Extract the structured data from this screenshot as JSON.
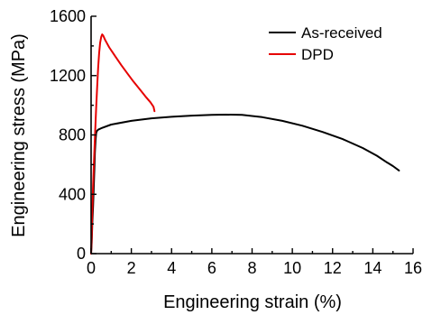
{
  "chart_data": {
    "type": "line",
    "title": "",
    "xlabel": "Engineering strain (%)",
    "ylabel": "Engineering stress (MPa)",
    "xlim": [
      0,
      16
    ],
    "ylim": [
      0,
      1600
    ],
    "xticks": [
      0,
      2,
      4,
      6,
      8,
      10,
      12,
      14,
      16
    ],
    "yticks": [
      0,
      400,
      800,
      1200,
      1600
    ],
    "grid": false,
    "legend_position": "top-right",
    "series": [
      {
        "name": "As-received",
        "color": "#000000",
        "x": [
          0.0,
          0.03,
          0.06,
          0.1,
          0.13,
          0.16,
          0.19,
          0.22,
          0.25,
          0.28,
          0.35,
          0.5,
          1.0,
          2.0,
          3.0,
          4.0,
          5.0,
          6.0,
          6.7,
          7.5,
          8.5,
          9.5,
          10.5,
          11.5,
          12.5,
          13.5,
          14.2,
          14.7,
          15.0,
          15.3
        ],
        "y": [
          0,
          80,
          200,
          320,
          440,
          560,
          680,
          760,
          810,
          825,
          835,
          845,
          870,
          895,
          912,
          922,
          930,
          935,
          937,
          935,
          920,
          895,
          862,
          820,
          772,
          712,
          660,
          615,
          590,
          560
        ]
      },
      {
        "name": "DPD",
        "color": "#e60000",
        "x": [
          0.0,
          0.03,
          0.06,
          0.1,
          0.15,
          0.2,
          0.25,
          0.3,
          0.35,
          0.4,
          0.45,
          0.5,
          0.55,
          0.6,
          0.7,
          0.9,
          1.2,
          1.5,
          1.8,
          2.1,
          2.4,
          2.7,
          2.95,
          3.1,
          3.15
        ],
        "y": [
          0,
          120,
          280,
          460,
          640,
          820,
          980,
          1120,
          1250,
          1350,
          1420,
          1460,
          1478,
          1470,
          1440,
          1390,
          1330,
          1270,
          1215,
          1160,
          1110,
          1060,
          1020,
          990,
          960
        ]
      }
    ]
  }
}
